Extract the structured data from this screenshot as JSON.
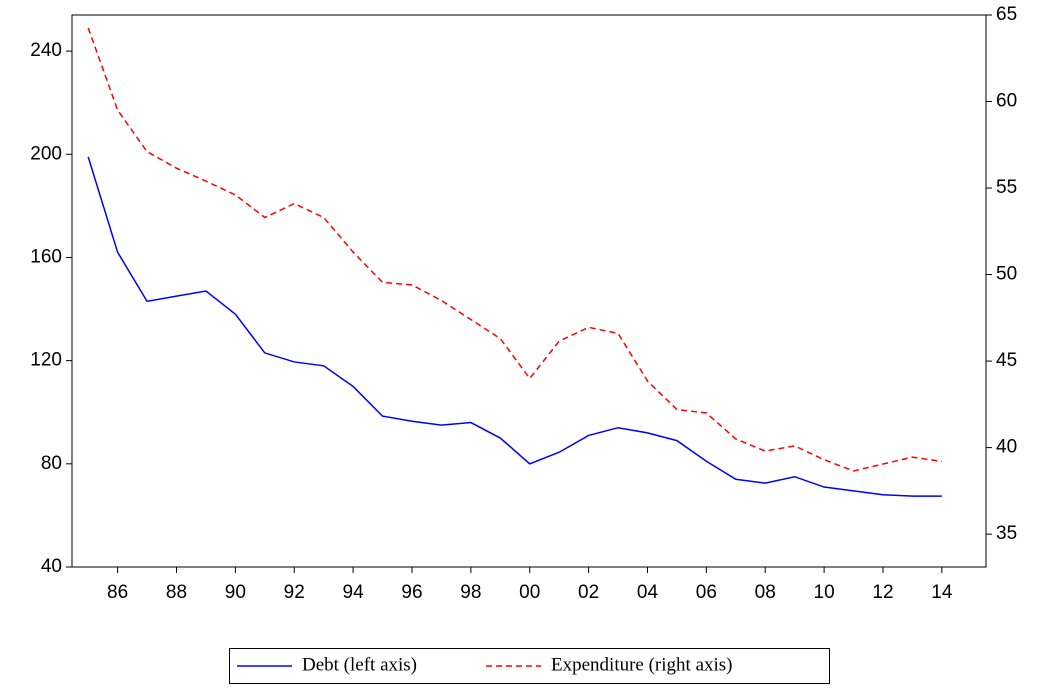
{
  "chart_data": {
    "type": "line",
    "x": [
      1985,
      1986,
      1987,
      1988,
      1989,
      1990,
      1991,
      1992,
      1993,
      1994,
      1995,
      1996,
      1997,
      1998,
      1999,
      2000,
      2001,
      2002,
      2003,
      2004,
      2005,
      2006,
      2007,
      2008,
      2009,
      2010,
      2011,
      2012,
      2013,
      2014
    ],
    "series": [
      {
        "name": "Debt (left axis)",
        "color": "#0000ff",
        "dash": "solid",
        "values": [
          199,
          162,
          143,
          145,
          147,
          138,
          123,
          119.5,
          118,
          110,
          98.5,
          96.5,
          95,
          96,
          90,
          80,
          84.5,
          91,
          94,
          92,
          89,
          81,
          74,
          72.5,
          75,
          71,
          69.5,
          68,
          67.5,
          67.5
        ]
      },
      {
        "name": "Expenditure (right axis)",
        "color": "#ff0000",
        "dash": "dashed",
        "axis": "y2",
        "values": [
          64.25,
          59.5,
          57.1,
          56.15,
          55.4,
          54.6,
          53.3,
          54.1,
          53.3,
          51.3,
          49.55,
          49.4,
          48.5,
          47.4,
          46.3,
          44.0,
          46.15,
          46.95,
          46.6,
          43.85,
          42.2,
          42.0,
          40.5,
          39.8,
          40.1,
          39.3,
          38.65,
          39.05,
          39.45,
          39.2
        ]
      }
    ],
    "xlim": [
      1984.45,
      2015.5
    ],
    "xticks": [
      {
        "value": 1986,
        "label": "86"
      },
      {
        "value": 1988,
        "label": "88"
      },
      {
        "value": 1990,
        "label": "90"
      },
      {
        "value": 1992,
        "label": "92"
      },
      {
        "value": 1994,
        "label": "94"
      },
      {
        "value": 1996,
        "label": "96"
      },
      {
        "value": 1998,
        "label": "98"
      },
      {
        "value": 2000,
        "label": "00"
      },
      {
        "value": 2002,
        "label": "02"
      },
      {
        "value": 2004,
        "label": "04"
      },
      {
        "value": 2006,
        "label": "06"
      },
      {
        "value": 2008,
        "label": "08"
      },
      {
        "value": 2010,
        "label": "10"
      },
      {
        "value": 2012,
        "label": "12"
      },
      {
        "value": 2014,
        "label": "14"
      }
    ],
    "ylim": [
      40,
      254
    ],
    "yticks": [
      40,
      80,
      120,
      160,
      200,
      240
    ],
    "y2lim": [
      33.1,
      65
    ],
    "y2ticks": [
      35,
      40,
      45,
      50,
      55,
      60,
      65
    ],
    "grid": false
  }
}
